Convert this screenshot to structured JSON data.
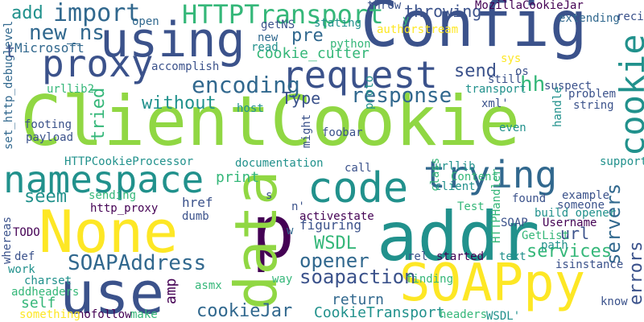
{
  "palette": {
    "background": "#ffffff",
    "purple": "#440154",
    "indigo": "#3b528b",
    "blue": "#31688e",
    "teal": "#21918c",
    "green": "#35b779",
    "lime": "#90d743",
    "yellow": "#fde725"
  },
  "words": [
    "ClientCookie",
    "Config",
    "addr",
    "SOAPpy",
    "None",
    "p",
    "data",
    "use",
    "using",
    "code",
    "namespace",
    "proxy",
    "request",
    "trying",
    "cookie",
    "HTTPTransport",
    "encoding",
    "SOAPAddress",
    "import",
    "response",
    "soapaction",
    "opener",
    "servers",
    "errors",
    "cookieJar",
    "hh",
    "WSDL",
    "new_ns",
    "throwing",
    "without",
    "CookieTransport",
    "services",
    "tried",
    "amp",
    "send",
    "Type",
    "cookie_cutter",
    "seem",
    "pre",
    "add",
    "url",
    "return",
    "print",
    "self",
    "MozillaCookieJar",
    "documentation",
    "http_proxy",
    "figuring",
    "started",
    "extending",
    "Microsoft",
    "payload",
    "HTTPCookieProcessor",
    "set_http_debuglevel",
    "urllib2",
    "accomplish",
    "activestate",
    "footing",
    "sending",
    "SOAP",
    "Username",
    "href",
    "example",
    "someone",
    "build_opener",
    "support",
    "Content",
    "client",
    "urllib",
    "class",
    "call",
    "found",
    "string",
    "problem",
    "suspect",
    "handle",
    "xml'",
    "proto",
    "host",
    "foobar",
    "might",
    "even",
    "text",
    "GetList",
    "path",
    "isinstance",
    "rel",
    "nofollow",
    "make",
    "something",
    "asmx",
    "way",
    "finding",
    "headers",
    "WSDL'",
    "know",
    "work",
    "def",
    "TODO",
    "whereas",
    "charset",
    "addheaders",
    "dumb",
    "Test",
    "n'",
    "HTTPHandler",
    "recipes",
    "authorstream",
    "stating",
    "python",
    "read",
    "getNS",
    "new",
    "open",
    "throw",
    "sys",
    "os",
    "still",
    "transport",
    "s",
    "t",
    "w",
    "y"
  ]
}
